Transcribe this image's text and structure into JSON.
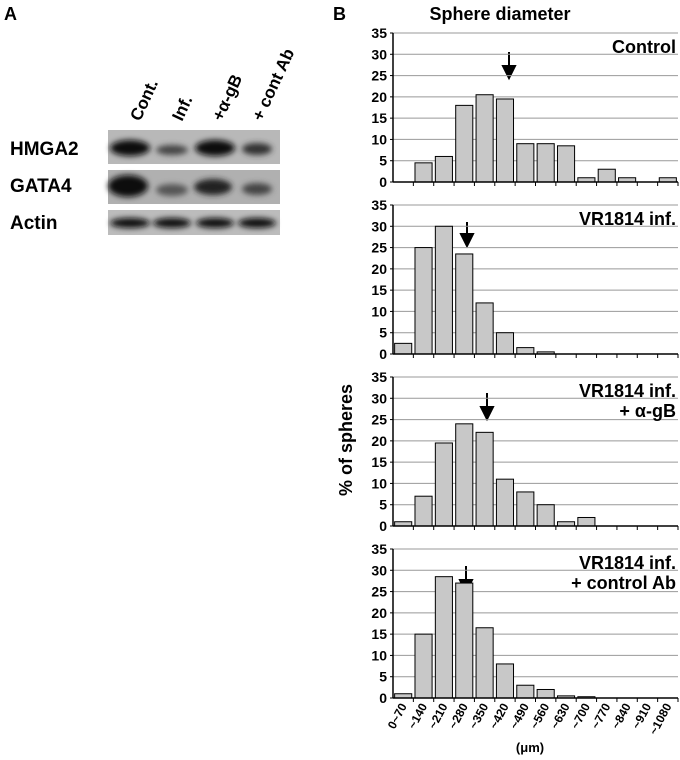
{
  "figure": {
    "panels": [
      "A",
      "B"
    ],
    "title": "Sphere diameter",
    "ylabel": "% of spheres",
    "xlabel": "(μm)"
  },
  "blot": {
    "lanes": [
      "Cont.",
      "Inf.",
      "+α-gB",
      "+ cont Ab"
    ],
    "rows": [
      "HMGA2",
      "GATA4",
      "Actin"
    ]
  },
  "chart_data": [
    {
      "type": "bar",
      "title": [
        "Control"
      ],
      "categories": [
        null,
        null,
        null,
        null,
        null,
        null,
        null,
        null,
        null,
        null,
        null,
        null,
        null,
        null
      ],
      "values": [
        0,
        4.5,
        6,
        18,
        20.5,
        19.5,
        9,
        9,
        8.5,
        1,
        3,
        1,
        0,
        1
      ],
      "color": "#c8c8c8",
      "ylim": [
        0,
        35
      ],
      "yticks": [
        0,
        5,
        10,
        15,
        20,
        25,
        30,
        35
      ],
      "grid": true
    },
    {
      "type": "bar",
      "title": [
        "VR1814 inf."
      ],
      "categories": [
        null,
        null,
        null,
        null,
        null,
        null,
        null,
        null,
        null,
        null,
        null,
        null,
        null,
        null
      ],
      "values": [
        2.5,
        25,
        30,
        23.5,
        12,
        5,
        1.5,
        0.5,
        0,
        0,
        0,
        0,
        0,
        0
      ],
      "color": "#c8c8c8",
      "ylim": [
        0,
        35
      ],
      "yticks": [
        0,
        5,
        10,
        15,
        20,
        25,
        30,
        35
      ],
      "grid": true
    },
    {
      "type": "bar",
      "title": [
        "VR1814 inf.",
        "+ α-gB"
      ],
      "categories": [
        null,
        null,
        null,
        null,
        null,
        null,
        null,
        null,
        null,
        null,
        null,
        null,
        null,
        null
      ],
      "values": [
        1,
        7,
        19.5,
        24,
        22,
        11,
        8,
        5,
        1,
        2,
        0,
        0,
        0,
        0
      ],
      "color": "#c8c8c8",
      "ylim": [
        0,
        35
      ],
      "yticks": [
        0,
        5,
        10,
        15,
        20,
        25,
        30,
        35
      ],
      "grid": true
    },
    {
      "type": "bar",
      "title": [
        "VR1814 inf.",
        "+ control Ab"
      ],
      "categories": [
        "0~70",
        "~140",
        "~210",
        "~280",
        "~350",
        "~420",
        "~490",
        "~560",
        "~630",
        "~700",
        "~770",
        "~840",
        "~910",
        "~1080"
      ],
      "values": [
        1,
        15,
        28.5,
        27,
        16.5,
        8,
        3,
        2,
        0.5,
        0.3,
        0,
        0,
        0,
        0
      ],
      "color": "#c8c8c8",
      "ylim": [
        0,
        35
      ],
      "yticks": [
        0,
        5,
        10,
        15,
        20,
        25,
        30,
        35
      ],
      "grid": true
    }
  ]
}
